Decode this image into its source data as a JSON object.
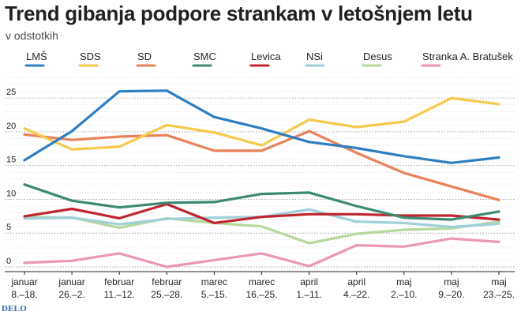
{
  "title": "Trend gibanja podpore strankam v letošnjem letu",
  "subtitle": "v odstotkih",
  "brand": "DELO",
  "chart_data": {
    "type": "line",
    "title": "Trend gibanja podpore strankam v letošnjem letu",
    "ylabel": "v odstotkih",
    "xlabel": "",
    "ylim": [
      0,
      29
    ],
    "yticks": [
      0,
      5,
      10,
      15,
      20,
      25
    ],
    "grid": "dotted horizontal",
    "legend": "top",
    "categories": [
      [
        "januar",
        "8.–18."
      ],
      [
        "januar",
        "26.–2."
      ],
      [
        "februar",
        "11.–12."
      ],
      [
        "februar",
        "25.–28."
      ],
      [
        "marec",
        "5.–15."
      ],
      [
        "marec",
        "16.–25."
      ],
      [
        "april",
        "1.–11."
      ],
      [
        "april",
        "4.–22."
      ],
      [
        "maj",
        "2.–10."
      ],
      [
        "maj",
        "9.–20."
      ],
      [
        "maj",
        "23.–25."
      ]
    ],
    "series": [
      {
        "name": "LMŠ",
        "color": "#2e7ec2",
        "values": [
          15.8,
          20.1,
          26.0,
          26.1,
          22.2,
          20.5,
          18.5,
          17.6,
          16.4,
          15.4,
          16.2
        ]
      },
      {
        "name": "SDS",
        "color": "#f5c94a",
        "values": [
          20.5,
          17.4,
          17.8,
          21.0,
          19.9,
          18.0,
          21.8,
          20.7,
          21.5,
          25.0,
          24.1
        ]
      },
      {
        "name": "SD",
        "color": "#e9825a",
        "values": [
          19.6,
          18.8,
          19.3,
          19.5,
          17.2,
          17.2,
          20.1,
          16.9,
          13.9,
          11.9,
          9.9
        ]
      },
      {
        "name": "SMC",
        "color": "#3d8a73",
        "values": [
          12.2,
          9.8,
          8.8,
          9.5,
          9.6,
          10.8,
          11.0,
          9.0,
          7.3,
          7.0,
          8.2
        ]
      },
      {
        "name": "Levica",
        "color": "#c0252e",
        "values": [
          7.5,
          8.6,
          7.2,
          9.3,
          6.5,
          7.4,
          7.8,
          7.8,
          7.6,
          7.6,
          7.0
        ]
      },
      {
        "name": "NSi",
        "color": "#9fcfd8",
        "values": [
          7.2,
          7.3,
          6.3,
          7.1,
          7.3,
          7.4,
          8.5,
          6.7,
          6.5,
          5.9,
          6.4
        ]
      },
      {
        "name": "Desus",
        "color": "#b6d89c",
        "values": [
          7.4,
          7.3,
          5.8,
          7.2,
          6.5,
          6.0,
          3.5,
          4.9,
          5.5,
          5.7,
          6.7
        ]
      },
      {
        "name": "Stranka A. Bratušek",
        "color": "#ec97b4",
        "values": [
          0.6,
          0.9,
          2.0,
          0.0,
          1.0,
          2.0,
          0.1,
          3.2,
          3.0,
          4.2,
          3.7
        ]
      }
    ]
  }
}
